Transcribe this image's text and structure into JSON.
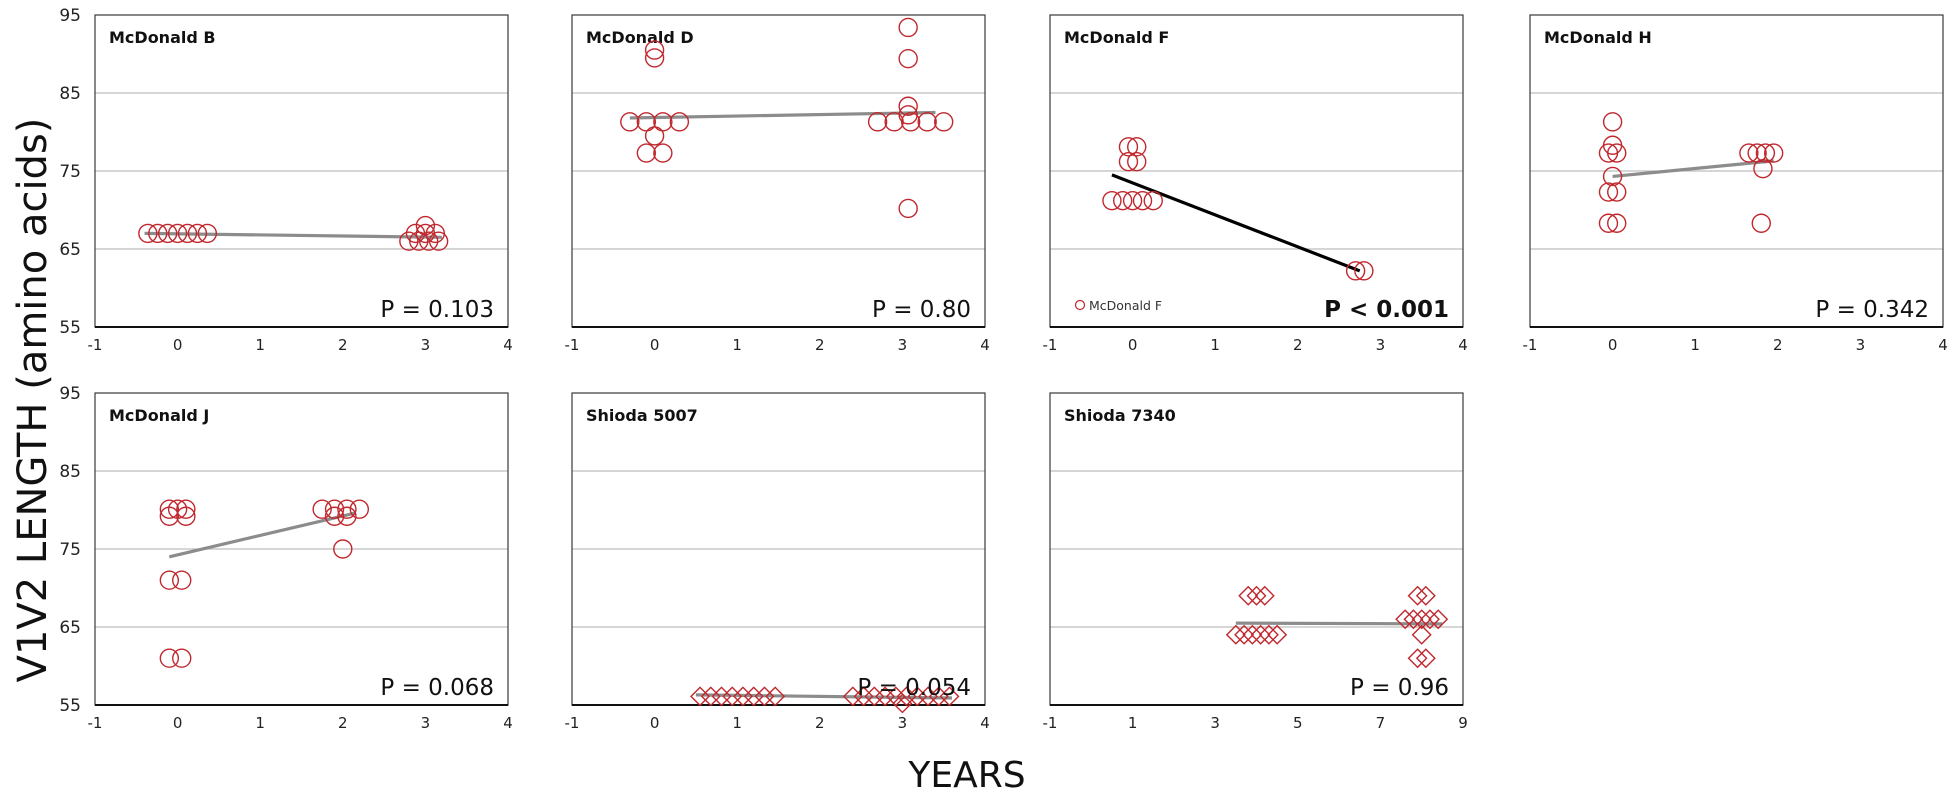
{
  "figure": {
    "ylabel": "V1V2 LENGTH (amino acids)",
    "xlabel": "YEARS"
  },
  "colors": {
    "marker": "#c0282e",
    "trend_gray": "#8c8c8c",
    "trend_black": "#000000",
    "grid": "#bdbdbd",
    "frame": "#3a3a3a"
  },
  "chart_data": [
    {
      "type": "scatter",
      "title": "McDonald B",
      "marker": "circle",
      "xlim": [
        -1,
        4
      ],
      "ylim": [
        55,
        95
      ],
      "xticks": [
        "-1",
        "0",
        "1",
        "2",
        "3",
        "4"
      ],
      "yticks": [
        "55",
        "65",
        "75",
        "85",
        "95"
      ],
      "show_yticks": true,
      "p_value": "P = 0.103",
      "p_bold": false,
      "trend": {
        "x": [
          -0.4,
          3.2
        ],
        "y": [
          67,
          66.5
        ],
        "color": "gray"
      },
      "points": [
        [
          -0.36,
          67
        ],
        [
          -0.24,
          67
        ],
        [
          -0.12,
          67
        ],
        [
          0,
          67
        ],
        [
          0.12,
          67
        ],
        [
          0.24,
          67
        ],
        [
          0.36,
          67
        ],
        [
          2.8,
          66
        ],
        [
          2.92,
          66
        ],
        [
          3.04,
          66
        ],
        [
          3.16,
          66
        ],
        [
          2.88,
          67
        ],
        [
          3.0,
          67
        ],
        [
          3.12,
          67
        ],
        [
          3.0,
          68
        ]
      ]
    },
    {
      "type": "scatter",
      "title": "McDonald D",
      "marker": "circle",
      "xlim": [
        -1,
        4
      ],
      "ylim": [
        55,
        95
      ],
      "xticks": [
        "-1",
        "0",
        "1",
        "2",
        "3",
        "4"
      ],
      "yticks": [],
      "show_yticks": false,
      "p_value": "P = 0.80",
      "p_bold": false,
      "trend": {
        "x": [
          -0.3,
          3.4
        ],
        "y": [
          81.8,
          82.5
        ],
        "color": "gray"
      },
      "points": [
        [
          -0.3,
          81.3
        ],
        [
          -0.1,
          81.3
        ],
        [
          0.1,
          81.3
        ],
        [
          0.3,
          81.3
        ],
        [
          -0.1,
          77.3
        ],
        [
          0.1,
          77.3
        ],
        [
          0,
          79.5
        ],
        [
          0,
          89.5
        ],
        [
          0,
          90.5
        ],
        [
          2.7,
          81.3
        ],
        [
          2.9,
          81.3
        ],
        [
          3.1,
          81.3
        ],
        [
          3.3,
          81.3
        ],
        [
          3.5,
          81.3
        ],
        [
          3.07,
          82.2
        ],
        [
          3.07,
          83.3
        ],
        [
          3.07,
          89.4
        ],
        [
          3.07,
          93.4
        ],
        [
          3.07,
          70.2
        ]
      ]
    },
    {
      "type": "scatter",
      "title": "McDonald F",
      "marker": "circle",
      "xlim": [
        -1,
        4
      ],
      "ylim": [
        55,
        95
      ],
      "xticks": [
        "-1",
        "0",
        "1",
        "2",
        "3",
        "4"
      ],
      "yticks": [],
      "show_yticks": false,
      "p_value": "P < 0.001",
      "p_bold": true,
      "legend": "McDonald F",
      "trend": {
        "x": [
          -0.25,
          2.75
        ],
        "y": [
          74.5,
          62.2
        ],
        "color": "black"
      },
      "points": [
        [
          -0.25,
          71.2
        ],
        [
          -0.12,
          71.2
        ],
        [
          0,
          71.2
        ],
        [
          0.12,
          71.2
        ],
        [
          0.25,
          71.2
        ],
        [
          -0.05,
          76.2
        ],
        [
          0.05,
          76.2
        ],
        [
          -0.05,
          78.1
        ],
        [
          0.05,
          78.1
        ],
        [
          2.7,
          62.2
        ],
        [
          2.8,
          62.2
        ]
      ]
    },
    {
      "type": "scatter",
      "title": "McDonald H",
      "marker": "circle",
      "xlim": [
        -1,
        4
      ],
      "ylim": [
        55,
        95
      ],
      "xticks": [
        "-1",
        "0",
        "1",
        "2",
        "3",
        "4"
      ],
      "yticks": [],
      "show_yticks": false,
      "p_value": "P = 0.342",
      "p_bold": false,
      "trend": {
        "x": [
          0,
          1.95
        ],
        "y": [
          74.3,
          76.3
        ],
        "color": "gray"
      },
      "points": [
        [
          -0.05,
          68.3
        ],
        [
          0.05,
          68.3
        ],
        [
          -0.05,
          72.3
        ],
        [
          0.05,
          72.3
        ],
        [
          0,
          74.3
        ],
        [
          -0.05,
          77.3
        ],
        [
          0.05,
          77.3
        ],
        [
          0,
          78.3
        ],
        [
          0,
          81.3
        ],
        [
          1.65,
          77.3
        ],
        [
          1.75,
          77.3
        ],
        [
          1.85,
          77.3
        ],
        [
          1.95,
          77.3
        ],
        [
          1.82,
          75.3
        ],
        [
          1.8,
          68.3
        ]
      ]
    },
    {
      "type": "scatter",
      "title": "McDonald J",
      "marker": "circle",
      "xlim": [
        -1,
        4
      ],
      "ylim": [
        55,
        95
      ],
      "xticks": [
        "-1",
        "0",
        "1",
        "2",
        "3",
        "4"
      ],
      "yticks": [
        "55",
        "65",
        "75",
        "85",
        "95"
      ],
      "show_yticks": true,
      "p_value": "P = 0.068",
      "p_bold": false,
      "trend": {
        "x": [
          -0.1,
          2.15
        ],
        "y": [
          74,
          79.6
        ],
        "color": "gray"
      },
      "points": [
        [
          -0.1,
          61
        ],
        [
          0.05,
          61
        ],
        [
          -0.1,
          71
        ],
        [
          0.05,
          71
        ],
        [
          -0.1,
          79.2
        ],
        [
          0.1,
          79.2
        ],
        [
          -0.1,
          80.1
        ],
        [
          0.1,
          80.1
        ],
        [
          0,
          80.1
        ],
        [
          1.75,
          80.1
        ],
        [
          1.9,
          80.1
        ],
        [
          2.05,
          80.1
        ],
        [
          2.2,
          80.1
        ],
        [
          1.9,
          79.2
        ],
        [
          2.05,
          79.2
        ],
        [
          2.0,
          75
        ]
      ]
    },
    {
      "type": "scatter",
      "title": "Shioda 5007",
      "marker": "diamond",
      "xlim": [
        -1,
        4
      ],
      "ylim": [
        55,
        95
      ],
      "xticks": [
        "-1",
        "0",
        "1",
        "2",
        "3",
        "4"
      ],
      "yticks": [],
      "show_yticks": false,
      "p_value": "P = 0.054",
      "p_bold": false,
      "trend": {
        "x": [
          0.5,
          3.6
        ],
        "y": [
          56.3,
          55.9
        ],
        "color": "gray"
      },
      "points": [
        [
          0.55,
          56.1
        ],
        [
          0.68,
          56.1
        ],
        [
          0.81,
          56.1
        ],
        [
          0.94,
          56.1
        ],
        [
          1.07,
          56.1
        ],
        [
          1.2,
          56.1
        ],
        [
          1.33,
          56.1
        ],
        [
          1.46,
          56.1
        ],
        [
          2.4,
          56.1
        ],
        [
          2.53,
          56.1
        ],
        [
          2.66,
          56.1
        ],
        [
          2.79,
          56.1
        ],
        [
          2.92,
          56.1
        ],
        [
          3.05,
          56.1
        ],
        [
          3.18,
          56.1
        ],
        [
          3.31,
          56.1
        ],
        [
          3.44,
          56.1
        ],
        [
          3.57,
          56.1
        ],
        [
          3.0,
          55.2
        ]
      ]
    },
    {
      "type": "scatter",
      "title": "Shioda 7340",
      "marker": "diamond",
      "xlim": [
        -1,
        9
      ],
      "ylim": [
        55,
        95
      ],
      "xticks": [
        "-1",
        "1",
        "3",
        "5",
        "7",
        "9"
      ],
      "yticks": [],
      "show_yticks": false,
      "p_value": "P = 0.96",
      "p_bold": false,
      "trend": {
        "x": [
          3.5,
          8.5
        ],
        "y": [
          65.5,
          65.4
        ],
        "color": "gray"
      },
      "points": [
        [
          3.5,
          64
        ],
        [
          3.7,
          64
        ],
        [
          3.9,
          64
        ],
        [
          4.1,
          64
        ],
        [
          4.3,
          64
        ],
        [
          4.5,
          64
        ],
        [
          3.8,
          69
        ],
        [
          4.0,
          69
        ],
        [
          4.2,
          69
        ],
        [
          7.6,
          66
        ],
        [
          7.8,
          66
        ],
        [
          8.0,
          66
        ],
        [
          8.2,
          66
        ],
        [
          8.4,
          66
        ],
        [
          7.9,
          69
        ],
        [
          8.1,
          69
        ],
        [
          8.0,
          64
        ],
        [
          7.9,
          61
        ],
        [
          8.1,
          61
        ]
      ]
    }
  ]
}
